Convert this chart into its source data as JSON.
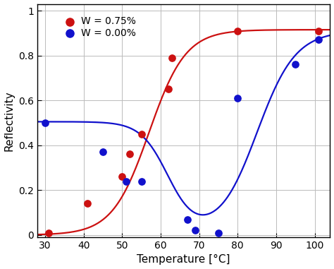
{
  "xlabel": "Temperature [°C]",
  "ylabel": "Reflectivity",
  "xlim": [
    28,
    104
  ],
  "ylim": [
    -0.01,
    1.03
  ],
  "xticks": [
    30,
    40,
    50,
    60,
    70,
    80,
    90,
    100
  ],
  "yticks": [
    0,
    0.2,
    0.4,
    0.6,
    0.8,
    1
  ],
  "yticklabels": [
    "0",
    "0.2",
    "0.4",
    "0.6",
    "0.8",
    "1"
  ],
  "red_label": "W = 0.75%",
  "blue_label": "W = 0.00%",
  "red_color": "#cc1111",
  "blue_color": "#1111cc",
  "grid_color": "#bbbbbb",
  "red_dots_x": [
    31,
    41,
    50,
    52,
    55,
    62,
    63,
    80,
    101
  ],
  "red_dots_y": [
    0.01,
    0.14,
    0.26,
    0.36,
    0.45,
    0.65,
    0.79,
    0.91,
    0.91
  ],
  "blue_dots_x": [
    30,
    45,
    51,
    55,
    67,
    69,
    75,
    80,
    95,
    101
  ],
  "blue_dots_y": [
    0.5,
    0.37,
    0.24,
    0.24,
    0.07,
    0.02,
    0.01,
    0.61,
    0.76,
    0.87
  ],
  "red_curve_midpoint": 57.0,
  "red_curve_k": 0.21,
  "red_curve_low": 0.0,
  "red_curve_high": 0.915,
  "blue_fall_mid": 62.0,
  "blue_fall_k": 0.28,
  "blue_fall_amp": 0.505,
  "blue_rise_mid": 85.0,
  "blue_rise_k": 0.2,
  "blue_rise_amp": 0.91,
  "dot_size": 45,
  "linewidth": 1.6,
  "fontsize_label": 11,
  "fontsize_tick": 10,
  "fontsize_legend": 10
}
